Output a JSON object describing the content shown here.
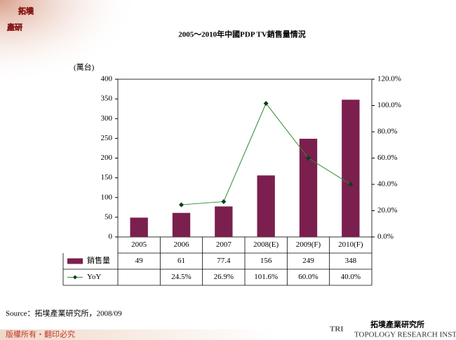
{
  "logo": {
    "line1": "拓墣",
    "line2": "產研"
  },
  "chart_data": {
    "type": "bar-line",
    "title": "2005～2010年中國PDP TV銷售量情況",
    "y_label": "(萬台)",
    "categories": [
      "2005",
      "2006",
      "2007",
      "2008(E)",
      "2009(F)",
      "2010(F)"
    ],
    "series": [
      {
        "name": "銷售量",
        "color": "#7b1f4e",
        "type": "bar",
        "values": [
          49,
          61,
          77.4,
          156,
          249,
          348
        ]
      },
      {
        "name": "YoY",
        "color": "#2e8b2e",
        "marker_color": "#0b3d1e",
        "type": "line",
        "axis": "y2",
        "values": [
          null,
          24.5,
          26.9,
          101.6,
          60.0,
          40.0
        ],
        "value_labels": [
          null,
          "24.5%",
          "26.9%",
          "101.6%",
          "60.0%",
          "40.0%"
        ]
      }
    ],
    "ylim": [
      0,
      400
    ],
    "yticks": [
      0,
      50,
      100,
      150,
      200,
      250,
      300,
      350,
      400
    ],
    "y2lim": [
      0,
      120
    ],
    "y2ticks": [
      {
        "value": 0,
        "label": "0.0%"
      },
      {
        "value": 20,
        "label": "20.0%"
      },
      {
        "value": 40,
        "label": "40.0%"
      },
      {
        "value": 60,
        "label": "60.0%"
      },
      {
        "value": 80,
        "label": "80.0%"
      },
      {
        "value": 100,
        "label": "100.0%"
      },
      {
        "value": 120,
        "label": "120.0%"
      }
    ],
    "data_table": true
  },
  "source": "Source：拓墣產業研究所，2008/09",
  "footer": {
    "rights": "版權所有・翻印必究",
    "brand": "TRI",
    "org": "拓墣產業研究所",
    "org_en": "TOPOLOGY RESEARCH INSTITUTE"
  }
}
